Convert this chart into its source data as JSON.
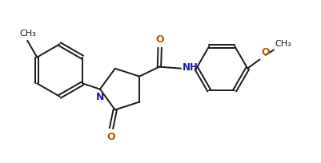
{
  "bg_color": "#ffffff",
  "line_color": "#1a1a1a",
  "N_color": "#1a1aaa",
  "O_color": "#b35900",
  "line_width": 1.4,
  "font_size": 8.5,
  "figsize": [
    4.01,
    2.04
  ],
  "dpi": 100,
  "xlim": [
    0,
    10
  ],
  "ylim": [
    0,
    5
  ]
}
